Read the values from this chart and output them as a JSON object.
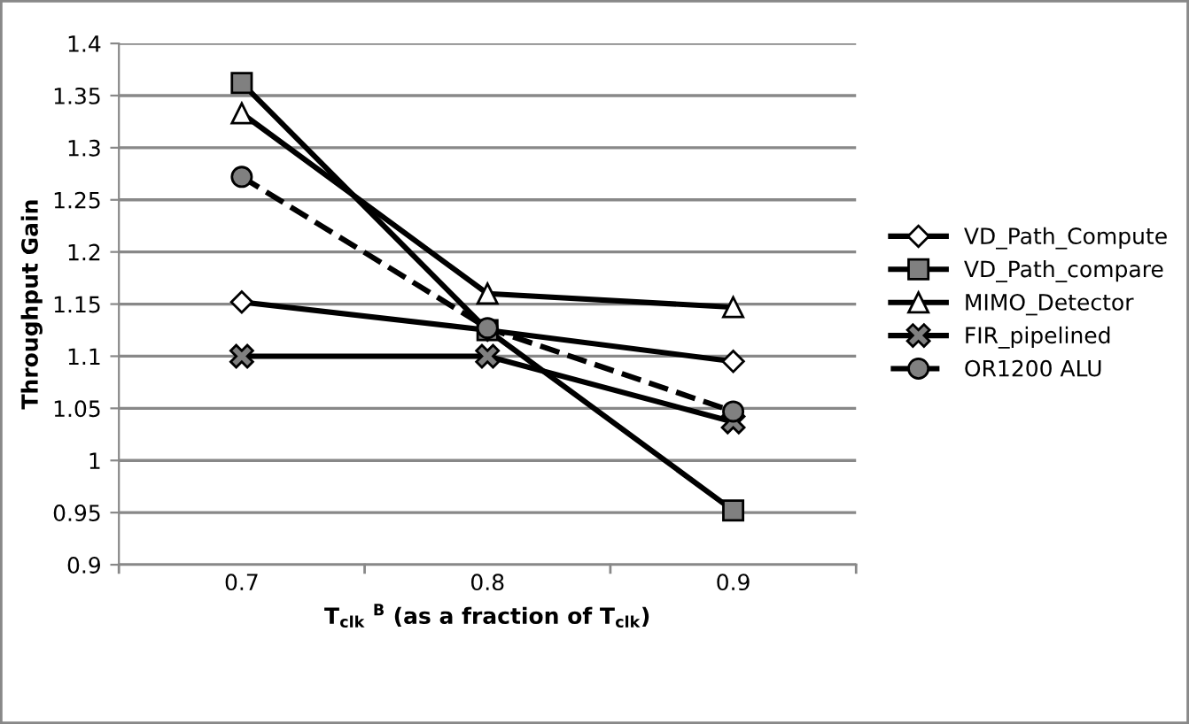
{
  "chart_data": {
    "type": "line",
    "ylabel": "Throughput Gain",
    "xlabel": "T$_{clk}$ $^{B}$ (as a fraction of T$_{clk}$)",
    "categories": [
      "0.7",
      "0.8",
      "0.9"
    ],
    "series": [
      {
        "name": "VD_Path_Compute",
        "color": "#000000",
        "marker": "diamond",
        "line_style": "solid",
        "values": [
          1.152,
          1.125,
          1.095
        ]
      },
      {
        "name": "VD_Path_compare",
        "color": "#000000",
        "marker": "square",
        "line_style": "solid",
        "values": [
          1.362,
          1.125,
          0.952
        ]
      },
      {
        "name": "MIMO_Detector",
        "color": "#000000",
        "marker": "triangle",
        "line_style": "solid",
        "values": [
          1.333,
          1.16,
          1.147
        ]
      },
      {
        "name": "FIR_pipelined",
        "color": "#000000",
        "marker": "cross",
        "line_style": "solid",
        "values": [
          1.1,
          1.1,
          1.037
        ]
      },
      {
        "name": "OR1200 ALU",
        "color": "#000000",
        "marker": "circle",
        "line_style": "dashed",
        "values": [
          1.272,
          1.127,
          1.047
        ]
      }
    ],
    "ylim": [
      0.9,
      1.4
    ],
    "yticks": [
      0.9,
      0.95,
      1,
      1.05,
      1.1,
      1.15,
      1.2,
      1.25,
      1.3,
      1.35,
      1.4
    ],
    "grid": "y",
    "legend": "right"
  }
}
